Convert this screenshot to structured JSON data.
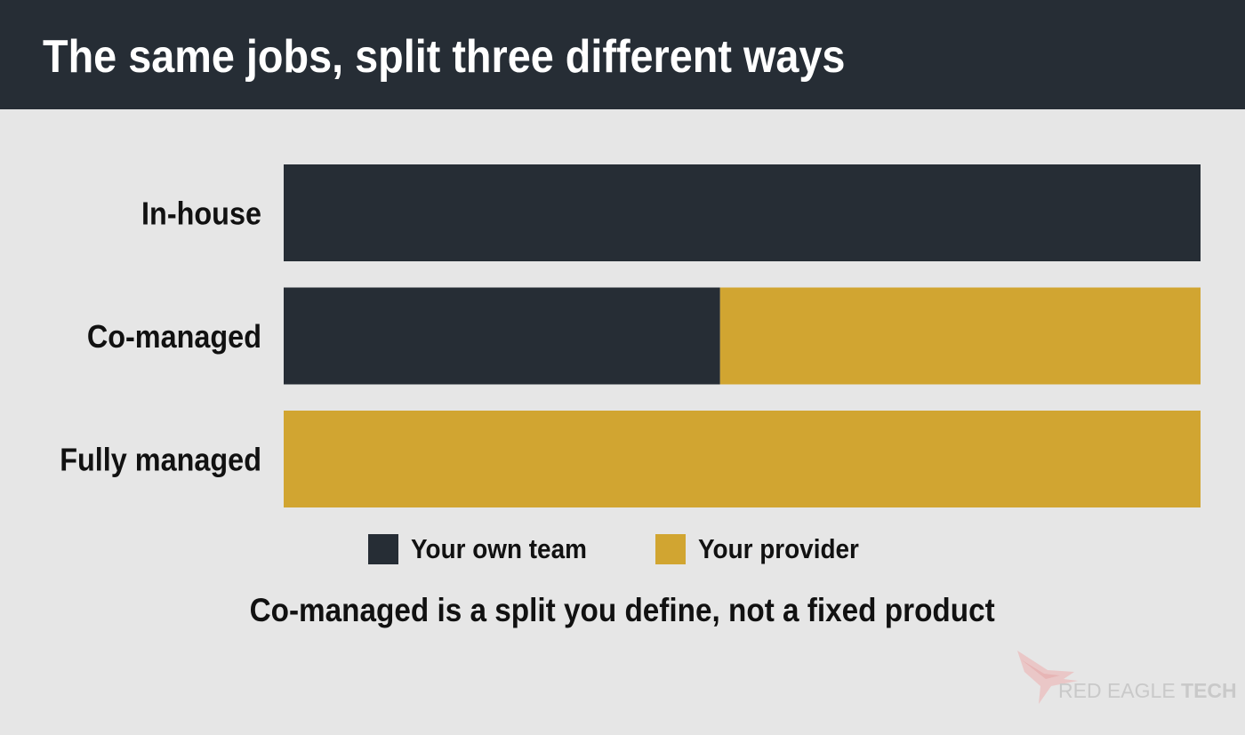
{
  "header": {
    "title": "The same jobs, split three different ways"
  },
  "chart_data": {
    "type": "bar",
    "orientation": "horizontal",
    "stacked": true,
    "categories": [
      "In-house",
      "Co-managed",
      "Fully managed"
    ],
    "series": [
      {
        "name": "Your own team",
        "color": "#262d35",
        "values": [
          100,
          47.6,
          0
        ]
      },
      {
        "name": "Your provider",
        "color": "#d1a531",
        "values": [
          0,
          52.4,
          100
        ]
      }
    ],
    "xlim": [
      0,
      100
    ],
    "grid": false,
    "legend_position": "bottom-center"
  },
  "legend": {
    "items": [
      {
        "label": "Your own team",
        "color": "#262d35"
      },
      {
        "label": "Your provider",
        "color": "#d1a531"
      }
    ]
  },
  "caption": "Co-managed is a split you define, not a fixed product",
  "logo": {
    "name_light": "RED EAGLE",
    "name_bold": "TECH",
    "icon": "eagle-icon"
  },
  "colors": {
    "header_bg": "#262d35",
    "page_bg": "#e6e6e6",
    "team": "#262d35",
    "provider": "#d1a531"
  }
}
